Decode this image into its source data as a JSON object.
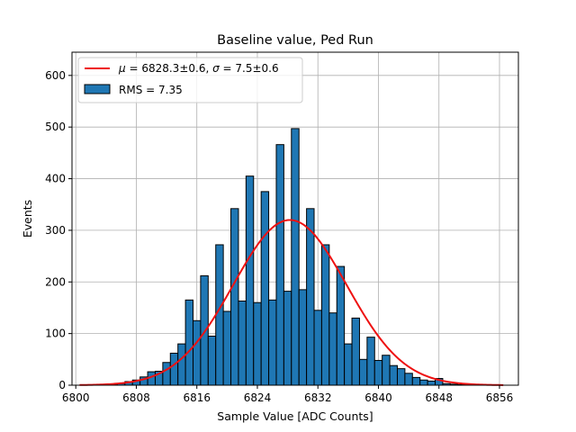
{
  "chart_data": {
    "type": "bar",
    "title": "Baseline value, Ped Run",
    "xlabel": "Sample Value [ADC Counts]",
    "ylabel": "Events",
    "xlim": [
      6799.5,
      6858.5
    ],
    "ylim": [
      0,
      645
    ],
    "grid": true,
    "legend_position": "top-left",
    "xticks": [
      6800,
      6808,
      6816,
      6824,
      6832,
      6840,
      6848,
      6856
    ],
    "yticks": [
      0,
      100,
      200,
      300,
      400,
      500,
      600
    ],
    "histogram": {
      "name": "RMS = 7.35",
      "color": "#1f77b4",
      "edge_color": "#000000",
      "bin_start": 6803.5,
      "bin_width": 1.0,
      "values": [
        1,
        2,
        3,
        7,
        10,
        16,
        26,
        27,
        44,
        62,
        80,
        165,
        125,
        212,
        95,
        272,
        143,
        342,
        163,
        405,
        160,
        375,
        165,
        466,
        182,
        497,
        185,
        342,
        145,
        272,
        140,
        230,
        80,
        130,
        50,
        93,
        48,
        58,
        38,
        32,
        23,
        15,
        10,
        8,
        13,
        3,
        2,
        1,
        1,
        1
      ]
    },
    "fit": {
      "name": "$\\mu = 6828.3\\pm0.6$, $\\sigma = 7.5\\pm0.6$",
      "label_mu_symbol": "μ",
      "label_mu_text": " = 6828.3±0.6, ",
      "label_sigma_symbol": "σ",
      "label_sigma_text": " = 7.5±0.6",
      "color": "#ee1111",
      "amplitude": 320,
      "mu": 6828.3,
      "sigma": 7.5,
      "x_range": [
        6800.5,
        6856.5
      ]
    }
  }
}
